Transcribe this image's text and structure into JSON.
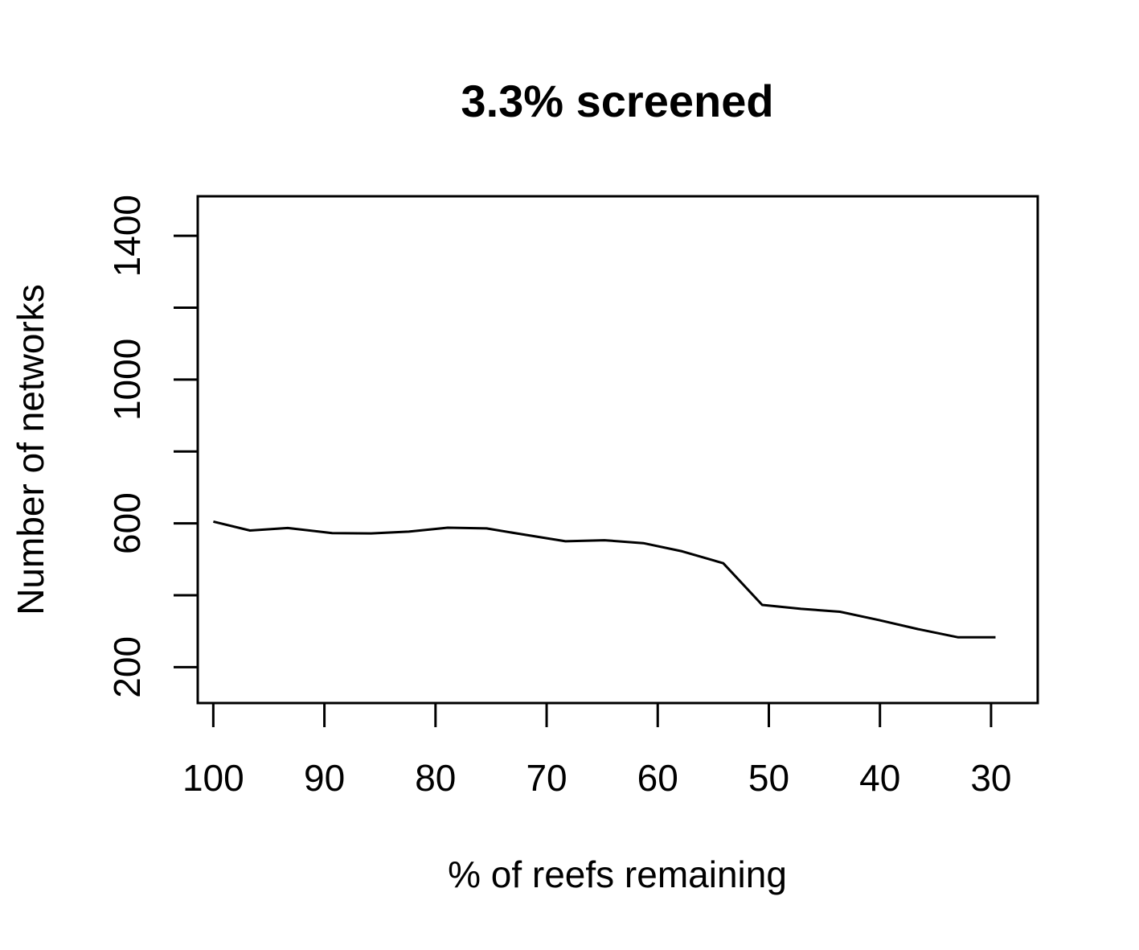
{
  "chart_data": {
    "type": "line",
    "title": "3.3% screened",
    "xlabel": "% of reefs remaining",
    "ylabel": "Number of networks",
    "xlim": [
      101.4,
      25.8
    ],
    "ylim": [
      100,
      1510
    ],
    "x_reversed": true,
    "x_ticks": [
      100,
      90,
      80,
      70,
      60,
      50,
      40,
      30
    ],
    "x_tick_labels": [
      "100",
      "90",
      "80",
      "70",
      "60",
      "50",
      "40",
      "30"
    ],
    "y_ticks": [
      200,
      400,
      600,
      800,
      1000,
      1200,
      1400
    ],
    "y_tick_labels": [
      "200",
      "",
      "600",
      "",
      "1000",
      "",
      "1400"
    ],
    "grid": false,
    "legend": "none",
    "series": [
      {
        "x": [
          100,
          96.7,
          93.3,
          89.3,
          85.8,
          82.4,
          78.9,
          75.4,
          71.9,
          68.3,
          64.8,
          61.3,
          57.8,
          54.1,
          50.6,
          47.1,
          43.6,
          40.1,
          36.6,
          33.0,
          29.6
        ],
        "y": [
          605,
          580,
          587,
          573,
          572,
          577,
          588,
          586,
          568,
          550,
          553,
          545,
          522,
          489,
          373,
          362,
          354,
          331,
          306,
          283,
          283
        ]
      }
    ],
    "colors": {
      "line": "#000000",
      "axis": "#000000",
      "background": "#ffffff"
    }
  }
}
